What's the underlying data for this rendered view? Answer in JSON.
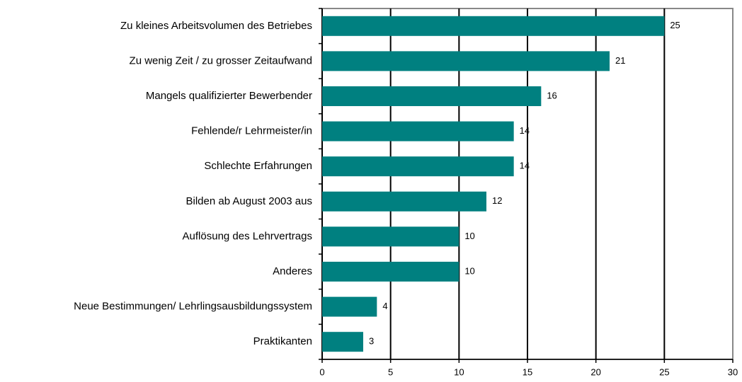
{
  "chart_data": {
    "type": "bar",
    "orientation": "horizontal",
    "categories": [
      "Zu kleines Arbeitsvolumen des Betriebes",
      "Zu wenig Zeit / zu grosser Zeitaufwand",
      "Mangels qualifizierter Bewerbender",
      "Fehlende/r Lehrmeister/in",
      "Schlechte Erfahrungen",
      "Bilden ab August 2003 aus",
      "Auflösung des Lehrvertrags",
      "Anderes",
      "Neue Bestimmungen/ Lehrlingsausbildungssystem",
      "Praktikanten"
    ],
    "values": [
      25,
      21,
      16,
      14,
      14,
      12,
      10,
      10,
      4,
      3
    ],
    "color": "#008080",
    "xlim": [
      0,
      30
    ],
    "xticks": [
      0,
      5,
      10,
      15,
      20,
      25,
      30
    ],
    "grid": true
  }
}
